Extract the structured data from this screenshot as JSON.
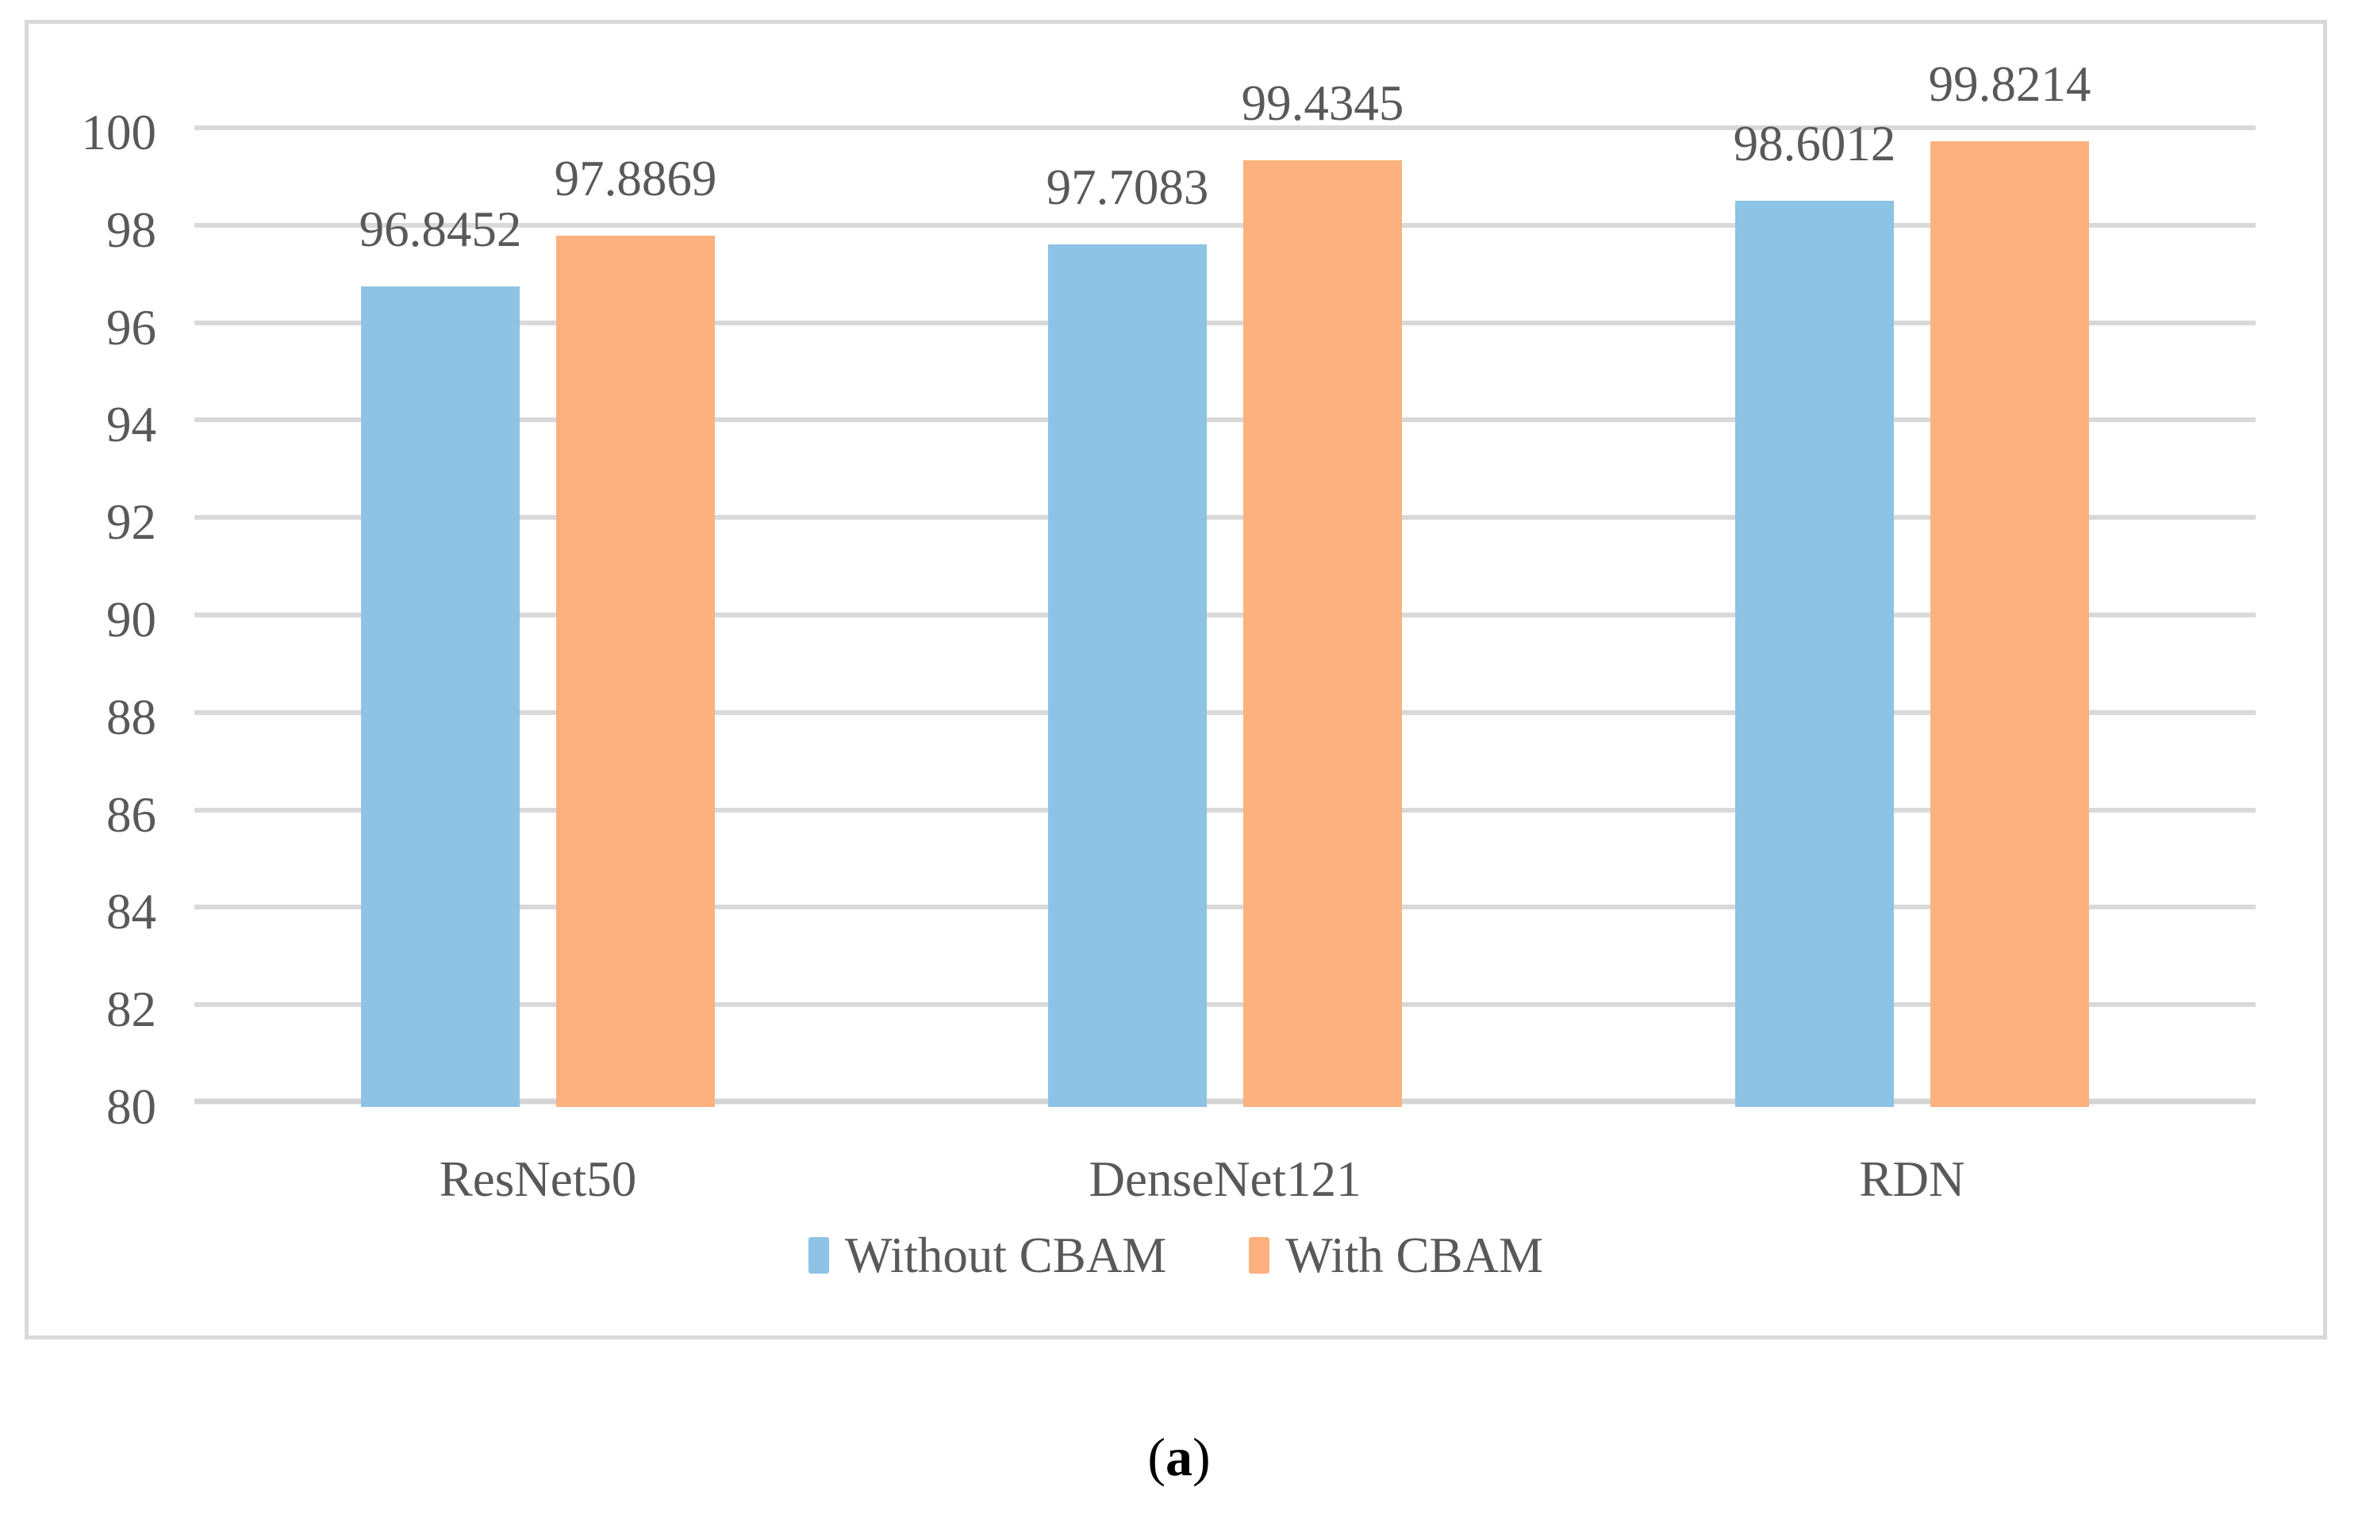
{
  "chart_data": {
    "type": "bar",
    "title": "",
    "xlabel": "",
    "ylabel": "",
    "categories": [
      "ResNet50",
      "DenseNet121",
      "RDN"
    ],
    "series": [
      {
        "name": "Without CBAM",
        "color": "#8DC3E4",
        "values": [
          96.8452,
          97.7083,
          98.6012
        ]
      },
      {
        "name": "With CBAM",
        "color": "#FCB17E",
        "values": [
          97.8869,
          99.4345,
          99.8214
        ]
      }
    ],
    "data_label_texts": [
      [
        "96.8452",
        "97.7083",
        "98.6012"
      ],
      [
        "97.8869",
        "99.4345",
        "99.8214"
      ]
    ],
    "ylim": [
      80,
      100
    ],
    "ytick_step": 2,
    "ytick_labels": [
      "80",
      "82",
      "84",
      "86",
      "88",
      "90",
      "92",
      "94",
      "96",
      "98",
      "100"
    ],
    "grid": true,
    "legend_position": "bottom-inside"
  },
  "caption": {
    "open_paren": "(",
    "letter": "a",
    "close_paren": ")"
  },
  "theme": {
    "text_color": "#595959",
    "caption_color": "#000000",
    "gridline_color": "#D9D9D9",
    "axis_line_color": "#D4D4D4",
    "frame_border_color": "#D9D9D9",
    "background_color": "#FFFFFF"
  }
}
